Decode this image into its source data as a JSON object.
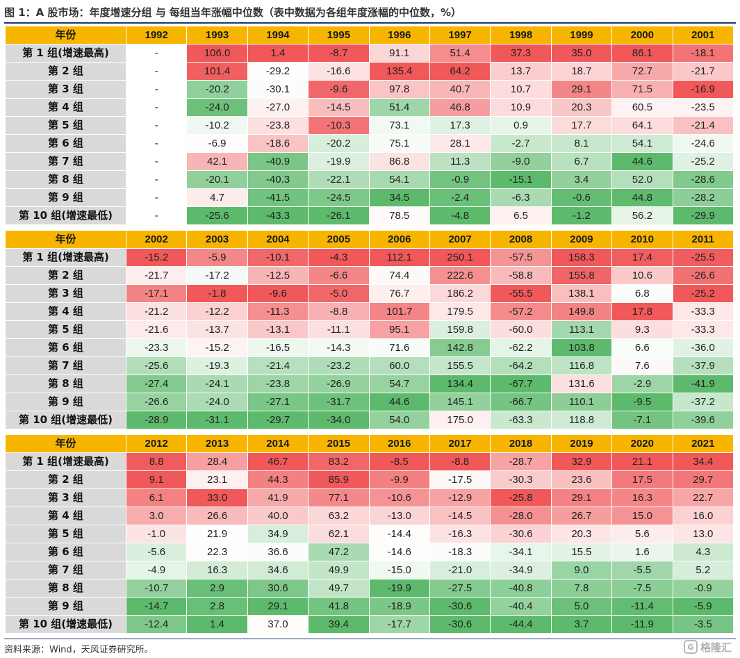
{
  "title": "图 1：A 股市场：年度增速分组 与 每组当年涨幅中位数（表中数据为各组年度涨幅的中位数，%）",
  "source": "资料来源：Wind，天风证券研究所。",
  "watermark": "格隆汇",
  "header_label": "年份",
  "colors": {
    "header": "#f7b500",
    "label_bg": "#d9d9d9",
    "high": "#f0585a",
    "mid": "#ffffff",
    "low": "#5dba6c"
  },
  "chart_data": {
    "type": "heatmap",
    "rows": [
      "第 1 组(增速最高)",
      "第 2 组",
      "第 3 组",
      "第 4 组",
      "第 5 组",
      "第 6 组",
      "第 7 组",
      "第 8 组",
      "第 9 组",
      "第 10 组(增速最低)"
    ],
    "blocks": [
      {
        "years": [
          "1992",
          "1993",
          "1994",
          "1995",
          "1996",
          "1997",
          "1998",
          "1999",
          "2000",
          "2001"
        ],
        "values": [
          [
            "-",
            "106.0",
            "1.4",
            "-8.7",
            "91.1",
            "51.4",
            "37.3",
            "35.0",
            "86.1",
            "-18.1"
          ],
          [
            "-",
            "101.4",
            "-29.2",
            "-16.6",
            "135.4",
            "64.2",
            "13.7",
            "18.7",
            "72.7",
            "-21.7"
          ],
          [
            "-",
            "-20.2",
            "-30.1",
            "-9.6",
            "97.8",
            "40.7",
            "10.7",
            "29.1",
            "71.5",
            "-16.9"
          ],
          [
            "-",
            "-24.0",
            "-27.0",
            "-14.5",
            "51.4",
            "46.8",
            "10.9",
            "20.3",
            "60.5",
            "-23.5"
          ],
          [
            "-",
            "-10.2",
            "-23.8",
            "-10.3",
            "73.1",
            "17.3",
            "0.9",
            "17.7",
            "64.1",
            "-21.4"
          ],
          [
            "-",
            "-6.9",
            "-18.6",
            "-20.2",
            "75.1",
            "28.1",
            "-2.7",
            "8.1",
            "54.1",
            "-24.6"
          ],
          [
            "-",
            "42.1",
            "-40.9",
            "-19.9",
            "86.8",
            "11.3",
            "-9.0",
            "6.7",
            "44.6",
            "-25.2"
          ],
          [
            "-",
            "-20.1",
            "-40.3",
            "-22.1",
            "54.1",
            "-0.9",
            "-15.1",
            "3.4",
            "52.0",
            "-28.6"
          ],
          [
            "-",
            "4.7",
            "-41.5",
            "-24.5",
            "34.5",
            "-2.4",
            "-6.3",
            "-0.6",
            "44.8",
            "-28.2"
          ],
          [
            "-",
            "-25.6",
            "-43.3",
            "-26.1",
            "78.5",
            "-4.8",
            "6.5",
            "-1.2",
            "56.2",
            "-29.9"
          ]
        ]
      },
      {
        "years": [
          "2002",
          "2003",
          "2004",
          "2005",
          "2006",
          "2007",
          "2008",
          "2009",
          "2010",
          "2011"
        ],
        "values": [
          [
            "-15.2",
            "-5.9",
            "-10.1",
            "-4.3",
            "112.1",
            "250.1",
            "-57.5",
            "158.3",
            "17.4",
            "-25.5"
          ],
          [
            "-21.7",
            "-17.2",
            "-12.5",
            "-6.6",
            "74.4",
            "222.6",
            "-58.8",
            "155.8",
            "10.6",
            "-26.6"
          ],
          [
            "-17.1",
            "-1.8",
            "-9.6",
            "-5.0",
            "76.7",
            "186.2",
            "-55.5",
            "138.1",
            "6.8",
            "-25.2"
          ],
          [
            "-21.2",
            "-12.2",
            "-11.3",
            "-8.8",
            "101.7",
            "179.5",
            "-57.2",
            "149.8",
            "17.8",
            "-33.3"
          ],
          [
            "-21.6",
            "-13.7",
            "-13.1",
            "-11.1",
            "95.1",
            "159.8",
            "-60.0",
            "113.1",
            "9.3",
            "-33.3"
          ],
          [
            "-23.3",
            "-15.2",
            "-16.5",
            "-14.3",
            "71.6",
            "142.8",
            "-62.2",
            "103.8",
            "6.6",
            "-36.0"
          ],
          [
            "-25.6",
            "-19.3",
            "-21.4",
            "-23.2",
            "60.0",
            "155.5",
            "-64.2",
            "116.8",
            "7.6",
            "-37.9"
          ],
          [
            "-27.4",
            "-24.1",
            "-23.8",
            "-26.9",
            "54.7",
            "134.4",
            "-67.7",
            "131.6",
            "-2.9",
            "-41.9"
          ],
          [
            "-26.6",
            "-24.0",
            "-27.1",
            "-31.7",
            "44.6",
            "145.1",
            "-66.7",
            "110.1",
            "-9.5",
            "-37.2"
          ],
          [
            "-28.9",
            "-31.1",
            "-29.7",
            "-34.0",
            "54.0",
            "175.0",
            "-63.3",
            "118.8",
            "-7.1",
            "-39.6"
          ]
        ]
      },
      {
        "years": [
          "2012",
          "2013",
          "2014",
          "2015",
          "2016",
          "2017",
          "2018",
          "2019",
          "2020",
          "2021"
        ],
        "values": [
          [
            "8.8",
            "28.4",
            "46.7",
            "83.2",
            "-8.5",
            "-8.8",
            "-28.7",
            "32.9",
            "21.1",
            "34.4"
          ],
          [
            "9.1",
            "23.1",
            "44.3",
            "85.9",
            "-9.9",
            "-17.5",
            "-30.3",
            "23.6",
            "17.5",
            "29.7"
          ],
          [
            "6.1",
            "33.0",
            "41.9",
            "77.1",
            "-10.6",
            "-12.9",
            "-25.8",
            "29.1",
            "16.3",
            "22.7"
          ],
          [
            "3.0",
            "26.6",
            "40.0",
            "63.2",
            "-13.0",
            "-14.5",
            "-28.0",
            "26.7",
            "15.0",
            "16.0"
          ],
          [
            "-1.0",
            "21.9",
            "34.9",
            "62.1",
            "-14.4",
            "-16.3",
            "-30.6",
            "20.3",
            "5.6",
            "13.0"
          ],
          [
            "-5.6",
            "22.3",
            "36.6",
            "47.2",
            "-14.6",
            "-18.3",
            "-34.1",
            "15.5",
            "1.6",
            "4.3"
          ],
          [
            "-4.9",
            "16.3",
            "34.6",
            "49.9",
            "-15.0",
            "-21.0",
            "-34.9",
            "9.0",
            "-5.5",
            "5.2"
          ],
          [
            "-10.7",
            "2.9",
            "30.6",
            "49.7",
            "-19.9",
            "-27.5",
            "-40.8",
            "7.8",
            "-7.5",
            "-0.9"
          ],
          [
            "-14.7",
            "2.8",
            "29.1",
            "41.8",
            "-18.9",
            "-30.6",
            "-40.4",
            "5.0",
            "-11.4",
            "-5.9"
          ],
          [
            "-12.4",
            "1.4",
            "37.0",
            "39.4",
            "-17.7",
            "-30.6",
            "-44.4",
            "3.7",
            "-11.9",
            "-3.5"
          ]
        ]
      }
    ]
  }
}
